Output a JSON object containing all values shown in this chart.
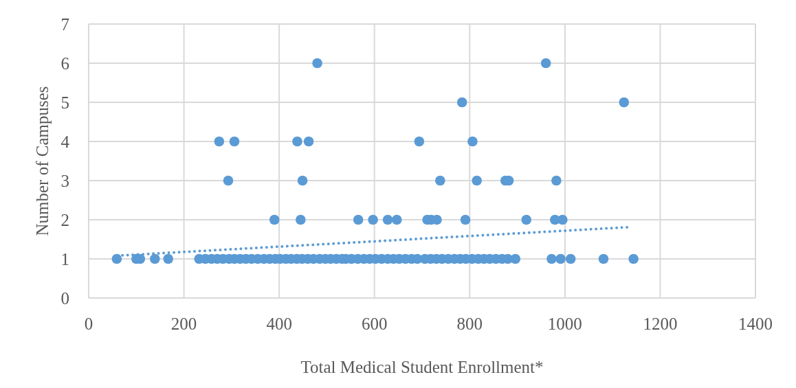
{
  "chart_data": {
    "type": "scatter",
    "xlabel": "Total Medical Student Enrollment*",
    "ylabel": "Number of Campuses",
    "xlim": [
      0,
      1400
    ],
    "xticks": [
      0,
      200,
      400,
      600,
      800,
      1000,
      1200,
      1400
    ],
    "ylim": [
      0,
      7
    ],
    "yticks": [
      0,
      1,
      2,
      3,
      4,
      5,
      6,
      7
    ],
    "grid": true,
    "series": [
      {
        "color": "#5b9bd5",
        "marker": "circle",
        "x": [
          59,
          100,
          108,
          139,
          167,
          232,
          245,
          258,
          270,
          282,
          295,
          306,
          318,
          330,
          342,
          355,
          368,
          380,
          392,
          402,
          414,
          425,
          437,
          448,
          460,
          472,
          485,
          497,
          508,
          520,
          532,
          540,
          552,
          565,
          578,
          590,
          602,
          615,
          628,
          640,
          652,
          665,
          678,
          690,
          706,
          718,
          730,
          742,
          755,
          768,
          780,
          792,
          805,
          818,
          830,
          842,
          855,
          868,
          880,
          896,
          972,
          991,
          1012,
          1081,
          1144,
          480,
          960,
          784,
          1124,
          274,
          306,
          438,
          462,
          694,
          806,
          293,
          449,
          738,
          815,
          875,
          882,
          982,
          390,
          445,
          566,
          597,
          628,
          647,
          711,
          719,
          731,
          791,
          919,
          979,
          995
        ],
        "values": [
          1,
          1,
          1,
          1,
          1,
          1,
          1,
          1,
          1,
          1,
          1,
          1,
          1,
          1,
          1,
          1,
          1,
          1,
          1,
          1,
          1,
          1,
          1,
          1,
          1,
          1,
          1,
          1,
          1,
          1,
          1,
          1,
          1,
          1,
          1,
          1,
          1,
          1,
          1,
          1,
          1,
          1,
          1,
          1,
          1,
          1,
          1,
          1,
          1,
          1,
          1,
          1,
          1,
          1,
          1,
          1,
          1,
          1,
          1,
          1,
          1,
          1,
          1,
          1,
          1,
          6,
          6,
          5,
          5,
          4,
          4,
          4,
          4,
          4,
          4,
          3,
          3,
          3,
          3,
          3,
          3,
          3,
          2,
          2,
          2,
          2,
          2,
          2,
          2,
          2,
          2,
          2,
          2,
          2,
          2
        ]
      },
      {
        "type": "line",
        "color": "#5b9bd5",
        "line_style": "dotted",
        "x": [
          71,
          1132
        ],
        "values": [
          1.09,
          1.81
        ]
      }
    ]
  }
}
